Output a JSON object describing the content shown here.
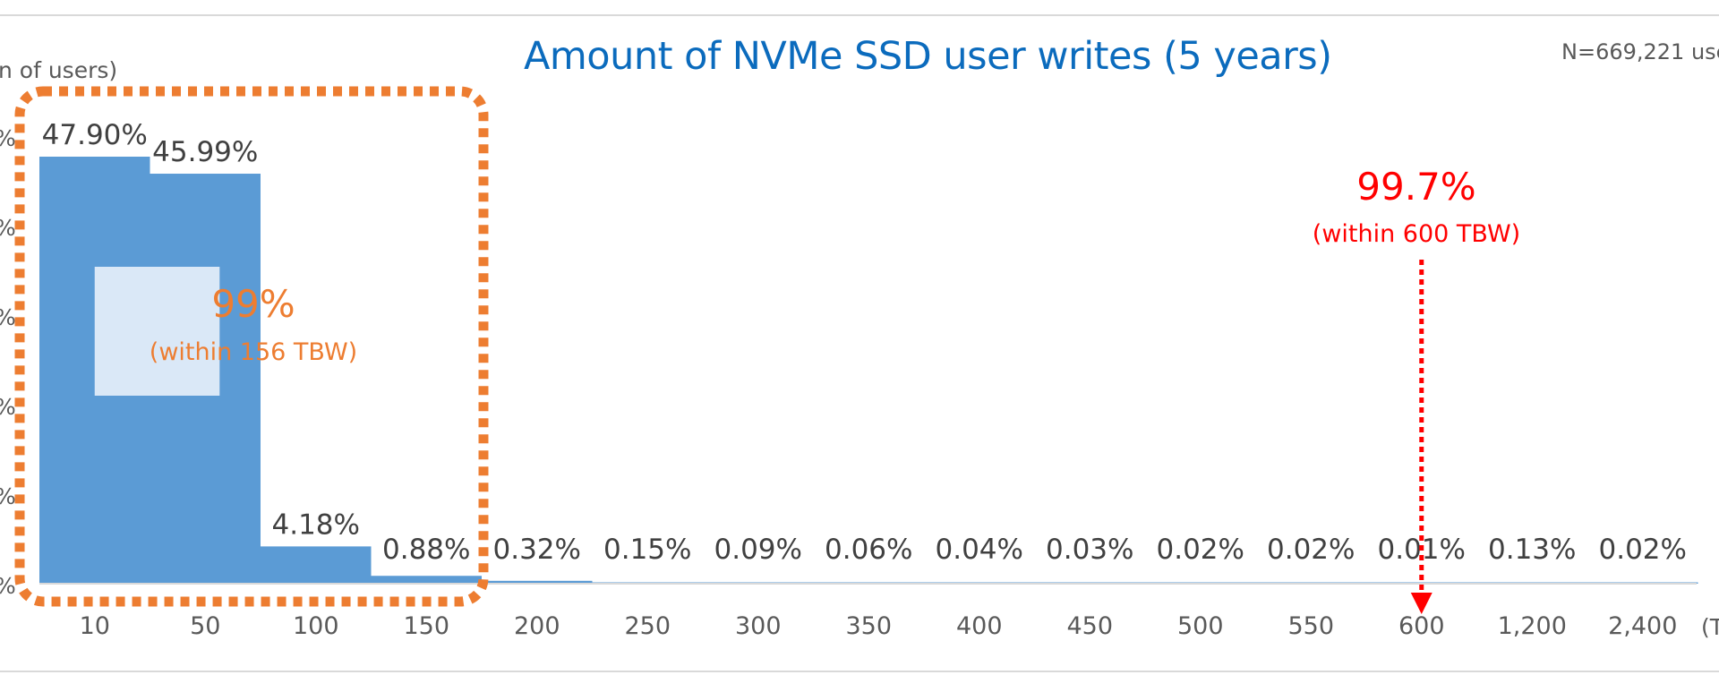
{
  "chart_data": {
    "type": "bar",
    "title": "Amount of NVMe SSD user writes (5 years)",
    "sample_note": "N=669,221 use",
    "ylabel": "n of users)",
    "xlabel": "",
    "x_unit_fragment": "(T",
    "categories": [
      "10",
      "50",
      "100",
      "150",
      "200",
      "250",
      "300",
      "350",
      "400",
      "450",
      "500",
      "550",
      "600",
      "1,200",
      "2,400"
    ],
    "values": [
      47.9,
      45.99,
      4.18,
      0.88,
      0.32,
      0.15,
      0.09,
      0.06,
      0.04,
      0.03,
      0.02,
      0.02,
      0.01,
      0.13,
      0.02
    ],
    "value_labels": [
      "47.90%",
      "45.99%",
      "4.18%",
      "0.88%",
      "0.32%",
      "0.15%",
      "0.09%",
      "0.06%",
      "0.04%",
      "0.03%",
      "0.02%",
      "0.02%",
      "0.01%",
      "0.13%",
      "0.02%"
    ],
    "ytick_fragments": [
      "%",
      "%",
      "%",
      "%",
      "%",
      "%"
    ],
    "ylim": [
      0,
      50
    ],
    "grid": false,
    "bar_color": "#5b9bd5",
    "annotations": {
      "cluster": {
        "value": "99%",
        "note": "(within 156 TBW)",
        "color": "#ed7d31",
        "categories_enclosed": [
          "10",
          "50",
          "100",
          "150"
        ]
      },
      "marker": {
        "value": "99.7%",
        "note": "(within 600 TBW)",
        "color": "#ff0000",
        "at_category": "600"
      }
    }
  }
}
